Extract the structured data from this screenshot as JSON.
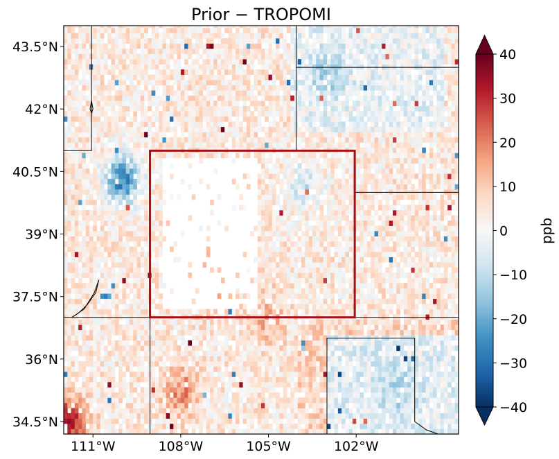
{
  "chart_data": {
    "type": "heatmap",
    "title": "Prior − TROPOMI",
    "projection": "lat-lon map",
    "xlim": [
      -112.0,
      -98.5
    ],
    "ylim": [
      34.2,
      44.0
    ],
    "x_ticks": [
      {
        "value": -111,
        "label": "111°W"
      },
      {
        "value": -108,
        "label": "108°W"
      },
      {
        "value": -105,
        "label": "105°W"
      },
      {
        "value": -102,
        "label": "102°W"
      }
    ],
    "y_ticks": [
      {
        "value": 34.5,
        "label": "34.5°N"
      },
      {
        "value": 36,
        "label": "36°N"
      },
      {
        "value": 37.5,
        "label": "37.5°N"
      },
      {
        "value": 39,
        "label": "39°N"
      },
      {
        "value": 40.5,
        "label": "40.5°N"
      },
      {
        "value": 42,
        "label": "42°N"
      },
      {
        "value": 43.5,
        "label": "43.5°N"
      }
    ],
    "colorbar": {
      "label": "ppb",
      "range": [
        -40,
        40
      ],
      "ticks": [
        40,
        30,
        20,
        10,
        0,
        -10,
        -20,
        -30,
        -40
      ],
      "tick_labels": [
        "40",
        "30",
        "20",
        "10",
        "0",
        "−10",
        "−20",
        "−30",
        "−40"
      ],
      "colormap": "RdBu_r",
      "extend": "both",
      "colors": [
        "#053061",
        "#2166ac",
        "#4393c3",
        "#92c5de",
        "#d1e5f0",
        "#f7f7f7",
        "#fddbc7",
        "#f4a582",
        "#d6604d",
        "#b2182b",
        "#67001f"
      ]
    },
    "highlight_region": {
      "lon": [
        -109.05,
        -102.05
      ],
      "lat": [
        37.0,
        41.0
      ],
      "color": "#a50f15"
    },
    "field": {
      "resolution_deg": 0.125,
      "background_mean_ppb": 4,
      "missing_data_region": {
        "lon": [
          -108.6,
          -105.4
        ],
        "lat": [
          37.2,
          40.8
        ]
      },
      "anomalies": [
        {
          "lon": -110.0,
          "lat": 40.3,
          "value": -30,
          "note": "strong negative cluster"
        },
        {
          "lon": -103.8,
          "lat": 40.2,
          "value": -12
        },
        {
          "lon": -103.0,
          "lat": 42.8,
          "value": -10
        },
        {
          "lon": -100.5,
          "lat": 35.2,
          "value": -8
        },
        {
          "lon": -111.8,
          "lat": 34.5,
          "value": 28,
          "note": "strong positive corner"
        },
        {
          "lon": -108.0,
          "lat": 35.2,
          "value": 15
        },
        {
          "lon": -107.0,
          "lat": 37.8,
          "value": 12
        },
        {
          "lon": -105.0,
          "lat": 37.0,
          "value": 10
        }
      ]
    },
    "boundaries": [
      [
        [
          -112.5,
          41.0
        ],
        [
          -111.05,
          41.0
        ],
        [
          -111.05,
          44.0
        ]
      ],
      [
        [
          -104.05,
          44.0
        ],
        [
          -104.05,
          41.0
        ]
      ],
      [
        [
          -104.05,
          43.0
        ],
        [
          -98.0,
          43.0
        ]
      ],
      [
        [
          -102.05,
          40.0
        ],
        [
          -98.0,
          40.0
        ]
      ],
      [
        [
          -112.5,
          37.0
        ],
        [
          -98.0,
          37.0
        ]
      ],
      [
        [
          -109.05,
          37.0
        ],
        [
          -109.05,
          34.0
        ]
      ],
      [
        [
          -103.0,
          34.0
        ],
        [
          -103.0,
          36.5
        ],
        [
          -100.0,
          36.5
        ],
        [
          -100.0,
          34.5
        ],
        [
          -99.6,
          34.3
        ],
        [
          -99.2,
          34.2
        ]
      ]
    ],
    "lake_outlines": [
      [
        [
          -111.72,
          37.0
        ],
        [
          -111.5,
          37.1
        ],
        [
          -111.2,
          37.3
        ],
        [
          -110.9,
          37.6
        ],
        [
          -110.8,
          37.9
        ],
        [
          -110.95,
          37.6
        ],
        [
          -111.3,
          37.2
        ],
        [
          -111.72,
          37.0
        ]
      ],
      [
        [
          -111.05,
          42.2
        ],
        [
          -111.1,
          42.0
        ],
        [
          -111.05,
          41.9
        ],
        [
          -111.0,
          42.0
        ],
        [
          -111.05,
          42.2
        ]
      ]
    ]
  }
}
